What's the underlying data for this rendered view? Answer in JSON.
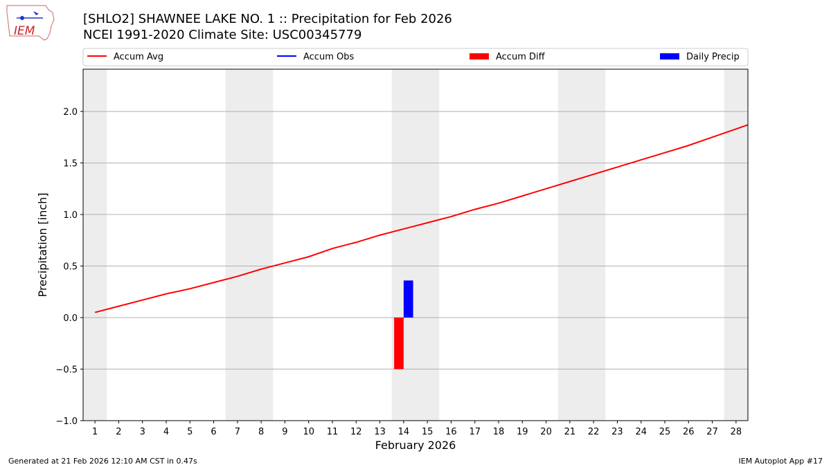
{
  "header": {
    "title": "[SHLO2] SHAWNEE LAKE NO. 1 :: Precipitation for Feb 2026",
    "subtitle": "NCEI 1991-2020 Climate Site: USC00345779",
    "logo_text": "IEM"
  },
  "footer": {
    "left": "Generated at 21 Feb 2026 12:10 AM CST in 0.47s",
    "right": "IEM Autoplot App #17"
  },
  "chart_data": {
    "type": "line",
    "xlabel": "February 2026",
    "ylabel": "Precipitation [inch]",
    "xlim": [
      0.5,
      28.5
    ],
    "ylim": [
      -1.0,
      2.41
    ],
    "yticks": [
      "−1.0",
      "−0.5",
      "0.0",
      "0.5",
      "1.0",
      "1.5",
      "2.0"
    ],
    "ytick_values": [
      -1.0,
      -0.5,
      0.0,
      0.5,
      1.0,
      1.5,
      2.0
    ],
    "x": [
      1,
      2,
      3,
      4,
      5,
      6,
      7,
      8,
      9,
      10,
      11,
      12,
      13,
      14,
      15,
      16,
      17,
      18,
      19,
      20,
      21,
      22,
      23,
      24,
      25,
      26,
      27,
      28
    ],
    "grid": "horizontal",
    "legend_placement": "top",
    "weekend_shading": [
      [
        0.5,
        1.5
      ],
      [
        6.5,
        8.5
      ],
      [
        13.5,
        15.5
      ],
      [
        20.5,
        22.5
      ],
      [
        27.5,
        28.5
      ]
    ],
    "weekend_color": "#ededed",
    "series": [
      {
        "name": "Accum Avg",
        "kind": "line",
        "color": "#ff0000",
        "x": [
          1,
          2,
          3,
          4,
          5,
          6,
          7,
          8,
          9,
          10,
          11,
          12,
          13,
          14,
          15,
          16,
          17,
          18,
          19,
          20,
          21,
          22,
          23,
          24,
          25,
          26,
          27,
          28,
          28.5
        ],
        "values": [
          0.05,
          0.11,
          0.17,
          0.23,
          0.28,
          0.34,
          0.4,
          0.47,
          0.53,
          0.59,
          0.67,
          0.73,
          0.8,
          0.86,
          0.92,
          0.98,
          1.05,
          1.11,
          1.18,
          1.25,
          1.32,
          1.39,
          1.46,
          1.53,
          1.6,
          1.67,
          1.75,
          1.83,
          1.87
        ]
      },
      {
        "name": "Accum Obs",
        "kind": "line",
        "color": "#0000ff",
        "x": [
          14
        ],
        "values": [
          0.36
        ]
      },
      {
        "name": "Accum Diff",
        "kind": "bar",
        "color": "#ff0000",
        "x": [
          14
        ],
        "values": [
          -0.5
        ]
      },
      {
        "name": "Daily Precip",
        "kind": "bar",
        "color": "#0000ff",
        "x": [
          14
        ],
        "values": [
          0.36
        ]
      }
    ]
  }
}
